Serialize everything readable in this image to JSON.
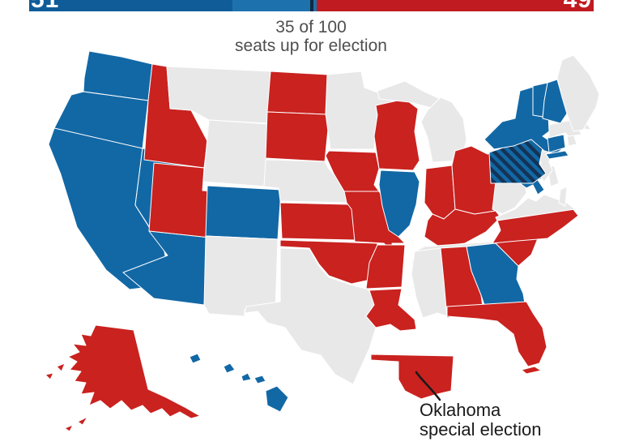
{
  "bar": {
    "dem_total": "51",
    "rep_total": "49",
    "total_seats": 100,
    "majority_seats": 50,
    "majority_marker_color": "#122940",
    "segments": [
      {
        "name": "dem-holdovers",
        "seats": 36,
        "color": "#0f5c99"
      },
      {
        "name": "dem-elected",
        "seats": 15,
        "color": "#1d71ad"
      },
      {
        "name": "rep-all",
        "seats": 49,
        "color": "#c01b20"
      }
    ]
  },
  "subtitle": {
    "line1": "35 of 100",
    "line2": "seats up for election"
  },
  "annotation": {
    "line1": "Oklahoma",
    "line2": "special election"
  },
  "map": {
    "colors": {
      "democrat": "#1268a5",
      "republican": "#c9221f",
      "no_election": "#e8e8e8",
      "dem_gain_stripe": "#143356"
    },
    "legend_semantics": {
      "dem": "Democrat win",
      "rep": "Republican win",
      "none": "No Senate election",
      "dem-gain": "Democrat gain (hatched)"
    },
    "states": [
      {
        "id": "wa",
        "name": "Washington",
        "party": "dem",
        "polys": [
          "104,96 110,63 150,70 188,79 183,124 103,113"
        ]
      },
      {
        "id": "or",
        "name": "Oregon",
        "party": "dem",
        "polys": [
          "103,113 183,124 176,183 120,174 67,158 88,117"
        ]
      },
      {
        "id": "ca",
        "name": "California",
        "party": "dem",
        "polys": [
          "67,158 176,183 167,253 203,310 210,351 160,357 131,333 95,280 75,215 60,178"
        ]
      },
      {
        "id": "nv",
        "name": "Nevada",
        "party": "dem",
        "polys": [
          "176,183 231,191 219,303 207,315 167,253"
        ]
      },
      {
        "id": "id",
        "name": "Idaho",
        "party": "rep",
        "polys": [
          "183,124 188,79 206,82 210,134 236,136 256,174 252,207 178,197"
        ]
      },
      {
        "id": "mt",
        "name": "Montana",
        "party": "none",
        "polys": [
          "206,82 334,88 330,152 258,148 236,136 210,134"
        ]
      },
      {
        "id": "wy",
        "name": "Wyoming",
        "party": "none",
        "polys": [
          "258,148 332,153 328,230 251,224"
        ]
      },
      {
        "id": "ut",
        "name": "Utah",
        "party": "rep",
        "polys": [
          "190,201 252,207 250,235 262,236 258,293 184,285"
        ]
      },
      {
        "id": "co",
        "name": "Colorado",
        "party": "dem",
        "polys": [
          "256,229 347,234 343,295 254,291"
        ]
      },
      {
        "id": "az",
        "name": "Arizona",
        "party": "dem",
        "polys": [
          "184,285 258,293 252,376 190,368 152,336 207,315"
        ]
      },
      {
        "id": "nm",
        "name": "New Mexico",
        "party": "none",
        "polys": [
          "254,291 343,295 340,384 302,382 302,390 258,387 252,376"
        ]
      },
      {
        "id": "nd",
        "name": "North Dakota",
        "party": "rep",
        "polys": [
          "334,88 405,92 402,141 330,138"
        ]
      },
      {
        "id": "sd",
        "name": "South Dakota",
        "party": "rep",
        "polys": [
          "330,138 402,141 406,149 401,199 328,195"
        ]
      },
      {
        "id": "ne",
        "name": "Nebraska",
        "party": "none",
        "polys": [
          "328,197 401,199 406,208 422,226 430,244 434,250 346,248 344,232 326,230"
        ]
      },
      {
        "id": "ks",
        "name": "Kansas",
        "party": "rep",
        "polys": [
          "346,250 430,252 436,260 438,296 348,294"
        ]
      },
      {
        "id": "ok",
        "name": "Oklahoma",
        "party": "rep",
        "polys": [
          "346,296 466,300 462,344 434,350 406,340 394,326 382,306 346,304"
        ]
      },
      {
        "id": "tx",
        "name": "Texas",
        "party": "none",
        "polys": [
          "346,306 382,307 394,328 406,342 436,352 452,356 458,360 462,376 452,390 464,404 456,430 436,474 414,462 396,438 372,432 352,404 330,398 318,384 302,386 304,378 346,372"
        ]
      },
      {
        "id": "mn",
        "name": "Minnesota",
        "party": "none",
        "polys": [
          "404,92 446,88 450,108 488,122 466,142 462,184 408,184 402,140"
        ]
      },
      {
        "id": "ia",
        "name": "Iowa",
        "party": "rep",
        "polys": [
          "406,186 464,188 468,208 462,228 468,236 425,236 412,214 402,192"
        ]
      },
      {
        "id": "mo",
        "name": "Missouri",
        "party": "rep",
        "polys": [
          "425,236 468,236 475,246 488,256 494,274 490,290 500,300 484,300 486,312 474,300 438,298 434,258 428,250"
        ]
      },
      {
        "id": "ar",
        "name": "Arkansas",
        "party": "rep",
        "polys": [
          "466,302 500,302 496,354 452,356 456,324"
        ]
      },
      {
        "id": "la",
        "name": "Louisiana",
        "party": "rep",
        "polys": [
          "456,358 496,356 492,376 512,394 514,406 494,408 482,400 464,404 452,390 462,376"
        ]
      },
      {
        "id": "wi",
        "name": "Wisconsin",
        "party": "rep",
        "polys": [
          "464,130 500,122 516,134 512,162 518,198 510,210 468,208 462,168 466,142"
        ]
      },
      {
        "id": "mi",
        "name": "Michigan",
        "party": "none",
        "polys": [
          "466,112 500,100 522,112 552,126 544,136 506,126 468,122",
          "528,136 544,120 558,126 572,146 576,172 570,198 534,200 528,170 520,150"
        ]
      },
      {
        "id": "il",
        "name": "Illinois",
        "party": "dem",
        "polys": [
          "470,210 512,212 518,224 514,252 506,278 492,292 480,284 472,254 468,228"
        ]
      },
      {
        "id": "in",
        "name": "Indiana",
        "party": "rep",
        "polys": [
          "526,208 558,204 562,258 548,270 534,264 524,250"
        ]
      },
      {
        "id": "oh",
        "name": "Ohio",
        "party": "rep",
        "polys": [
          "558,204 562,186 582,180 602,190 624,182 628,240 612,260 586,264 562,258"
        ]
      },
      {
        "id": "ky",
        "name": "Kentucky",
        "party": "rep",
        "polys": [
          "534,264 548,270 562,258 586,264 612,260 618,268 600,286 574,300 542,304 524,292 528,272"
        ]
      },
      {
        "id": "tn",
        "name": "Tennessee",
        "party": "none",
        "polys": [
          "512,310 524,304 610,298 606,310 580,320 508,326"
        ]
      },
      {
        "id": "ms",
        "name": "Mississippi",
        "party": "none",
        "polys": [
          "512,310 544,306 548,346 552,390 540,386 522,392 514,368 508,338"
        ]
      },
      {
        "id": "al",
        "name": "Alabama",
        "party": "rep",
        "polys": [
          "544,306 576,304 582,334 594,364 596,378 586,380 588,392 570,388 552,392 548,346"
        ]
      },
      {
        "id": "ga",
        "name": "Georgia",
        "party": "dem",
        "polys": [
          "576,304 612,300 626,314 640,328 638,344 646,362 648,374 598,376 594,364 582,334"
        ]
      },
      {
        "id": "sc",
        "name": "South Carolina",
        "party": "rep",
        "polys": [
          "612,300 626,296 664,294 656,314 640,328 626,314"
        ]
      },
      {
        "id": "nc",
        "name": "North Carolina",
        "party": "rep",
        "polys": [
          "614,272 706,256 714,266 696,280 676,294 628,298 608,300 618,284"
        ]
      },
      {
        "id": "fl",
        "name": "Florida",
        "party": "rep",
        "polys": [
          "552,378 650,372 658,386 670,404 675,428 666,448 652,452 640,434 634,412 614,396 590,393 552,390",
          "644,456 660,452 668,457 650,461"
        ]
      },
      {
        "id": "va",
        "name": "Virginia",
        "party": "none",
        "polys": [
          "612,268 636,258 652,244 662,248 672,240 700,250 710,258 614,272",
          "692,234 700,230 698,254 690,250"
        ]
      },
      {
        "id": "wv",
        "name": "West Virginia",
        "party": "none",
        "polys": [
          "608,258 612,224 622,212 630,226 634,208 646,214 650,238 636,256 620,264"
        ]
      },
      {
        "id": "md",
        "name": "Maryland",
        "party": "dem",
        "polys": [
          "638,222 658,214 676,208 680,216 664,222 672,234 664,240 658,228 650,232 642,226"
        ]
      },
      {
        "id": "de",
        "name": "Delaware",
        "party": "none",
        "polys": [
          "676,208 684,204 690,226 680,230"
        ]
      },
      {
        "id": "nj",
        "name": "New Jersey",
        "party": "none",
        "polys": [
          "664,188 674,182 680,190 678,200 682,210 672,224 664,214 668,200 662,194"
        ]
      },
      {
        "id": "pa",
        "name": "Pennsylvania",
        "party": "dem-gain",
        "polys": [
          "604,188 656,170 670,182 666,202 674,214 658,226 606,226"
        ]
      },
      {
        "id": "ny",
        "name": "New York",
        "party": "dem",
        "polys": [
          "598,172 620,150 636,146 642,112 662,106 664,124 676,120 678,162 670,168 694,184 686,190 672,186 656,172 634,180 610,184",
          "674,190 698,186 702,192 678,196"
        ]
      },
      {
        "id": "ct",
        "name": "Connecticut",
        "party": "dem",
        "polys": [
          "676,170 696,166 698,182 678,188"
        ]
      },
      {
        "id": "ri",
        "name": "Rhode Island",
        "party": "none",
        "polys": [
          "700,166 708,164 712,178 702,180"
        ]
      },
      {
        "id": "ma",
        "name": "Massachusetts",
        "party": "none",
        "polys": [
          "678,154 714,146 722,150 730,160 714,158 718,166 702,168 698,164 678,170"
        ]
      },
      {
        "id": "vt",
        "name": "Vermont",
        "party": "dem",
        "polys": [
          "658,106 676,102 670,144 658,142"
        ]
      },
      {
        "id": "nh",
        "name": "New Hampshire",
        "party": "dem",
        "polys": [
          "676,102 688,98 700,140 692,152 670,146 672,124"
        ]
      },
      {
        "id": "me",
        "name": "Maine",
        "party": "none",
        "polys": [
          "688,96 694,74 708,68 728,92 740,116 736,132 720,160 708,162 700,140 694,120"
        ]
      },
      {
        "id": "ak",
        "name": "Alaska",
        "party": "rep",
        "polys": [
          "118,401 165,407 183,480 205,490 228,502 247,513 236,516 222,508 210,514 200,504 186,510 176,500 162,506 150,494 136,504 124,494 110,500 116,484 100,486 106,472 92,470 100,458 86,456 95,446 84,440 98,434 90,424 106,426 100,412 112,414",
          "70,452 80,448 76,458",
          "56,462 66,460 62,468",
          "96,520 108,514 102,524",
          "80,528 90,524 86,532"
        ]
      },
      {
        "id": "hi",
        "name": "Hawaii",
        "party": "dem",
        "polys": [
          "234,440 244,436 248,444 238,448",
          "276,452 284,448 290,456 280,460",
          "298,464 306,460 310,468 300,470",
          "314,466 324,463 328,470 318,473",
          "328,482 342,476 356,490 346,508 330,500"
        ]
      },
      {
        "id": "ok-special",
        "name": "Oklahoma (special election)",
        "party": "rep",
        "polys": [
          "458,437 560,439 557,482 540,486 520,492 500,482 492,468 492,446 458,444"
        ]
      }
    ]
  }
}
